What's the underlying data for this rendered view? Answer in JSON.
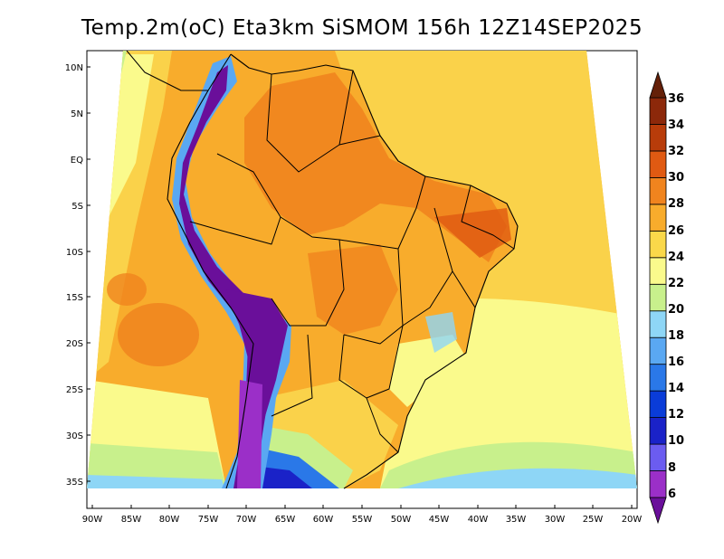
{
  "title": "Temp.2m(oC) Eta3km SiSMOM 156h 12Z14SEP2025",
  "variable": "2 m air temperature",
  "units": "oC",
  "model": "Eta3km",
  "lat_axis": {
    "labels": [
      "10N",
      "5N",
      "EQ",
      "5S",
      "10S",
      "15S",
      "20S",
      "25S",
      "30S",
      "35S"
    ],
    "values": [
      10,
      5,
      0,
      -5,
      -10,
      -15,
      -20,
      -25,
      -30,
      -35
    ]
  },
  "lon_axis": {
    "labels": [
      "90W",
      "85W",
      "80W",
      "75W",
      "70W",
      "65W",
      "60W",
      "55W",
      "50W",
      "45W",
      "40W",
      "35W",
      "30W",
      "25W",
      "20W"
    ],
    "values": [
      -90,
      -85,
      -80,
      -75,
      -70,
      -65,
      -60,
      -55,
      -50,
      -45,
      -40,
      -35,
      -30,
      -25,
      -20
    ]
  },
  "colorbar": {
    "labels": [
      "36",
      "34",
      "32",
      "30",
      "28",
      "26",
      "24",
      "22",
      "20",
      "18",
      "16",
      "14",
      "12",
      "10",
      "8",
      "6"
    ],
    "levels": [
      6,
      8,
      10,
      12,
      14,
      16,
      18,
      20,
      22,
      24,
      26,
      28,
      30,
      32,
      34,
      36
    ],
    "colors": [
      "#6a0f9a",
      "#9b2fc8",
      "#6b5cf0",
      "#1a22c8",
      "#0a3cd8",
      "#2a78e8",
      "#5aa8f2",
      "#8ed6f6",
      "#c8f08c",
      "#fafa8c",
      "#fad84a",
      "#f8ac2c",
      "#f0841e",
      "#e05a12",
      "#b83c0a",
      "#8c280a",
      "#642008"
    ]
  },
  "colors": {
    "ocean_warm": "#fad24a",
    "ocean_mild": "#f8ac2c",
    "ocean_cool": "#fafa8c",
    "ocean_cold": "#8ed6f6",
    "land_hot": "#f0841e",
    "andes_cold": "#6a0f9a"
  }
}
